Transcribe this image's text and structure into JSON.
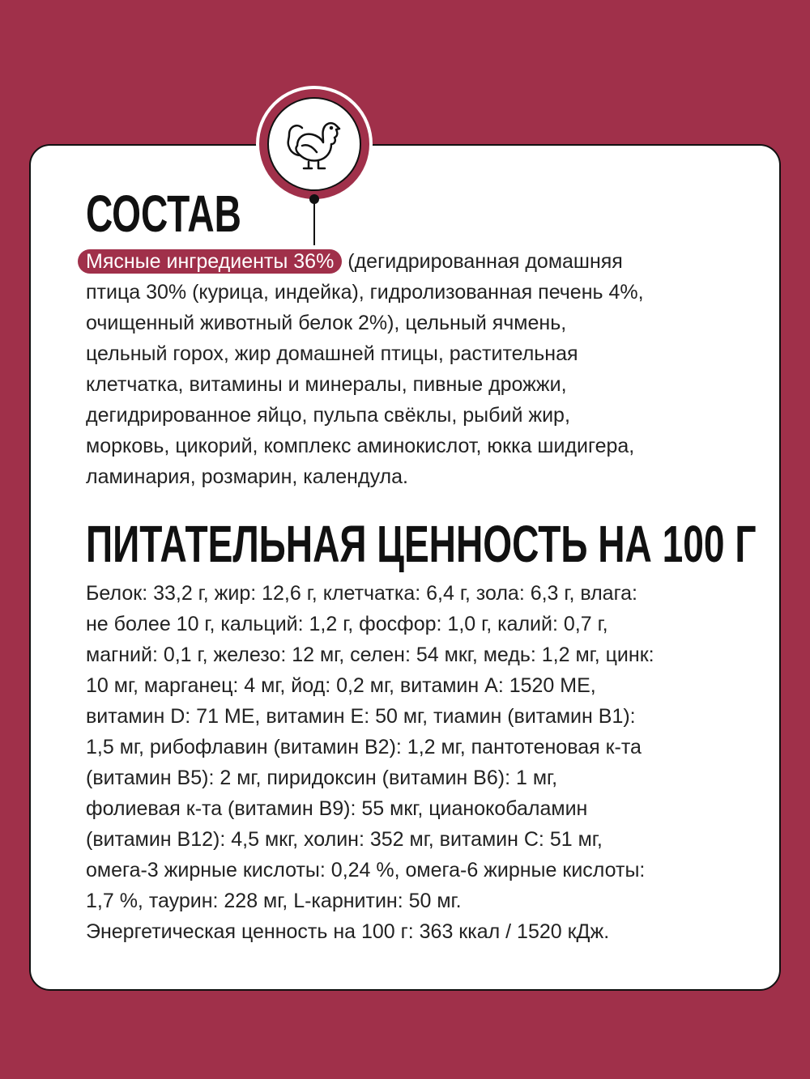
{
  "composition": {
    "title": "СОСТАВ",
    "highlight": "Мясные ингредиенты 36%",
    "lines": [
      " (дегидрированная домашняя",
      "птица 30% (курица, индейка), гидролизованная печень 4%,",
      "очищенный животный белок 2%), цельный ячмень,",
      "цельный горох, жир домашней птицы, растительная",
      "клетчатка, витамины и минералы, пивные дрожжи,",
      "дегидрированное яйцо, пульпа свёклы, рыбий жир,",
      "морковь, цикорий, комплекс аминокислот, юкка шидигера,",
      "ламинария, розмарин, календула."
    ]
  },
  "nutrition": {
    "title": "ПИТАТЕЛЬНАЯ ЦЕННОСТЬ НА 100 Г",
    "lines": [
      "Белок: 33,2 г, жир: 12,6 г, клетчатка: 6,4 г, зола: 6,3 г, влага:",
      "не более 10 г, кальций: 1,2 г, фосфор: 1,0 г, калий: 0,7 г,",
      "магний: 0,1 г, железо: 12 мг, селен: 54 мкг, медь: 1,2 мг, цинк:",
      "10 мг, марганец: 4 мг, йод: 0,2 мг, витамин А: 1520 МЕ,",
      "витамин D: 71 МЕ, витамин Е: 50 мг, тиамин (витамин В1):",
      "1,5 мг, рибофлавин (витамин В2): 1,2 мг, пантотеновая к-та",
      "(витамин В5): 2 мг, пиридоксин (витамин В6): 1 мг,",
      "фолиевая к-та (витамин В9): 55 мкг, цианокобаламин",
      "(витамин В12): 4,5 мкг, холин: 352 мг, витамин С: 51 мг,",
      "омега-3 жирные кислоты: 0,24 %, омега-6 жирные кислоты:",
      "1,7 %, таурин: 228 мг, L-карнитин: 50 мг.",
      "Энергетическая ценность на 100 г: 363 ккал / 1520 кДж."
    ]
  },
  "icon": "turkey-icon",
  "colors": {
    "brand": "#a0304a"
  }
}
